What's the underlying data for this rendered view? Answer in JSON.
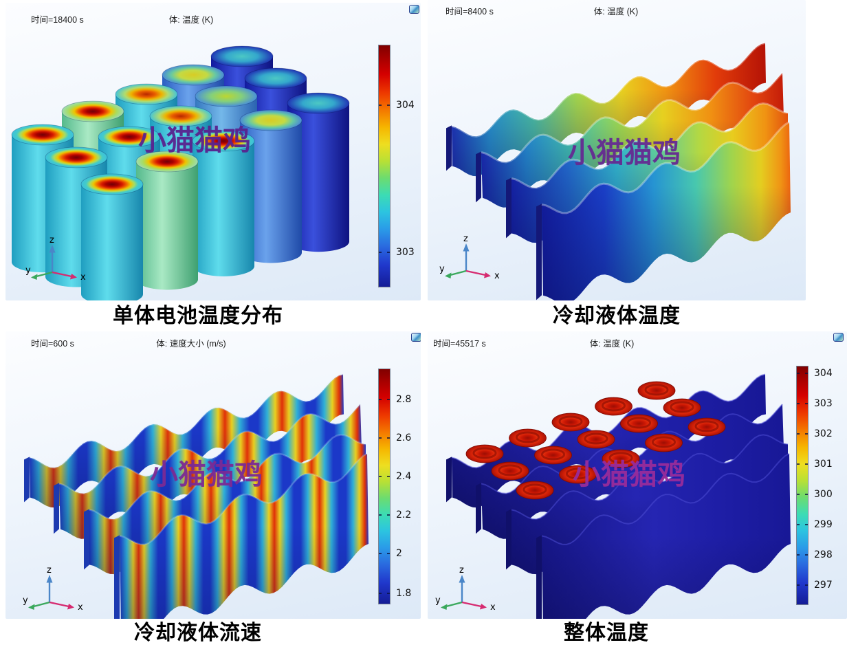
{
  "watermark": {
    "text": "小猫猫鸡"
  },
  "axis_triad": {
    "x": "x",
    "y": "y",
    "z": "z"
  },
  "panels": [
    {
      "time_label": "时间=18400 s",
      "plot_label": "体: 温度 (K)",
      "caption": "单体电池温度分布",
      "icon": "plot-window-icon",
      "colorbar": {
        "ticks": [
          "304",
          "303"
        ]
      }
    },
    {
      "time_label": "时间=8400 s",
      "plot_label": "体: 温度 (K)",
      "caption": "冷却液体温度",
      "colorbar": {
        "ticks": []
      }
    },
    {
      "time_label": "时间=600 s",
      "plot_label": "体: 速度大小 (m/s)",
      "caption": "冷却液体流速",
      "icon": "plot-window-icon",
      "colorbar": {
        "ticks": [
          "2.8",
          "2.6",
          "2.4",
          "2.2",
          "2",
          "1.8"
        ]
      }
    },
    {
      "time_label": "时间=45517 s",
      "plot_label": "体: 温度 (K)",
      "caption": "整体温度",
      "icon": "plot-window-icon",
      "colorbar": {
        "ticks": [
          "304",
          "303",
          "302",
          "301",
          "300",
          "299",
          "298",
          "297"
        ]
      }
    }
  ],
  "colors": {
    "panel_bg_top": "#fcfdff",
    "panel_bg_bottom": "#dde9f7",
    "jet_top": "#800000",
    "jet_bottom": "#141c96",
    "watermark_purple": "#59238f",
    "watermark_magenta": "#982c9b",
    "hot_red": "#d81c00",
    "cold_navy": "#141890",
    "axis_x": "#d62a70",
    "axis_y": "#3aa85c",
    "axis_z": "#4a86c8"
  },
  "chart_data": [
    {
      "type": "heatmap",
      "render": "3d_volume_plot",
      "title": "单体电池温度分布",
      "time_s": 18400,
      "field": "温度",
      "unit": "K",
      "colormap": "rainbow",
      "colorbar_ticks": [
        304,
        303
      ],
      "colorbar_range_est": [
        302.85,
        304.35
      ],
      "description": "15节圆柱电池呈3×5交错排列；电池侧面约303 K(青蓝色)，顶部热点可达304 K以上(红色)，右侧电池整体更冷(深蓝色)"
    },
    {
      "type": "heatmap",
      "render": "3d_volume_plot",
      "title": "冷却液体温度",
      "time_s": 8400,
      "field": "温度",
      "unit": "K",
      "colormap": "rainbow",
      "colorbar_ticks": [],
      "description": "4排波浪形冷却流道；冷却液前左侧为低温(深蓝)，沿流道向后右侧逐渐升温(青→绿→黄→红)"
    },
    {
      "type": "heatmap",
      "render": "3d_volume_plot",
      "title": "冷却液体流速",
      "time_s": 600,
      "field": "速度大小",
      "unit": "m/s",
      "colormap": "rainbow",
      "colorbar_ticks": [
        2.8,
        2.6,
        2.4,
        2.2,
        2,
        1.8
      ],
      "colorbar_range_est": [
        1.73,
        2.95
      ],
      "description": "波浪流道收缩处出现竖直高速条带(红色，约2.8-2.9 m/s)，扩张处速度较低(蓝色，约1.8 m/s)"
    },
    {
      "type": "heatmap",
      "render": "3d_volume_plot",
      "title": "整体温度",
      "time_s": 45517,
      "field": "温度",
      "unit": "K",
      "colormap": "rainbow",
      "colorbar_ticks": [
        304,
        303,
        302,
        301,
        300,
        299,
        298,
        297
      ],
      "colorbar_range_est": [
        296.5,
        304.5
      ],
      "description": "深蓝色冷却结构约297 K，15个电池顶部呈红色约304 K，交错排列"
    }
  ]
}
